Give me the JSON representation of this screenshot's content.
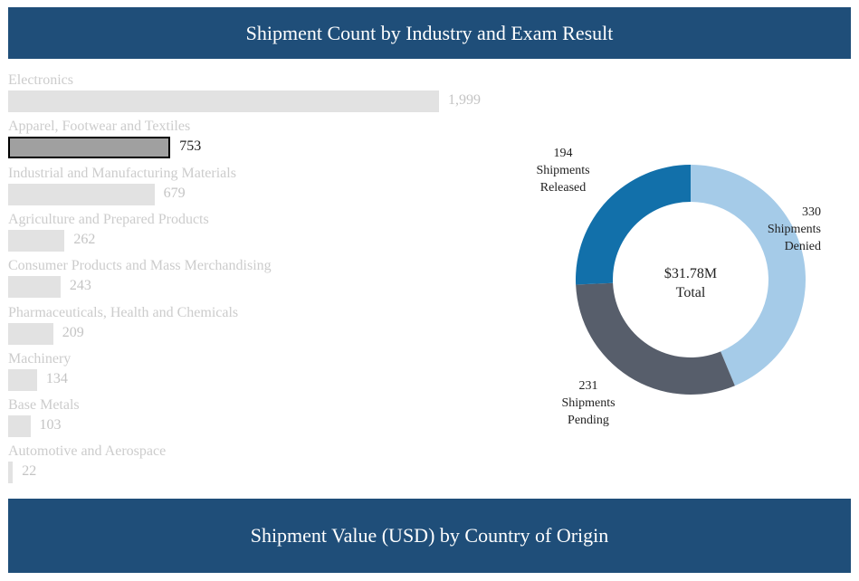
{
  "top_title": "Shipment Count by Industry and Exam Result",
  "bottom_title": "Shipment Value (USD) by Country of Origin",
  "colors": {
    "banner": "#1f4e79",
    "bar": "#e2e2e2",
    "bar_selected": "#a0a0a0",
    "released": "#1270aa",
    "denied": "#a5cbe8",
    "pending": "#575e6b"
  },
  "chart_data": [
    {
      "type": "bar",
      "orientation": "horizontal",
      "title": "Shipment Count by Industry and Exam Result",
      "categories": [
        "Electronics",
        "Apparel, Footwear and Textiles",
        "Industrial and Manufacturing Materials",
        "Agriculture and Prepared Products",
        "Consumer Products and Mass Merchandising",
        "Pharmaceuticals, Health and Chemicals",
        "Machinery",
        "Base Metals",
        "Automotive and Aerospace"
      ],
      "values": [
        1999,
        753,
        679,
        262,
        243,
        209,
        134,
        103,
        22
      ],
      "value_labels": [
        "1,999",
        "753",
        "679",
        "262",
        "243",
        "209",
        "134",
        "103",
        "22"
      ],
      "selected": "Apparel, Footwear and Textiles",
      "xlim": [
        0,
        1999
      ]
    },
    {
      "type": "pie",
      "donut": true,
      "center_label": [
        "$31.78M",
        "Total"
      ],
      "slices": [
        {
          "value": 330,
          "label": [
            "330",
            "Shipments",
            "Denied"
          ],
          "color": "#a5cbe8"
        },
        {
          "value": 231,
          "label": [
            "231",
            "Shipments",
            "Pending"
          ],
          "color": "#575e6b"
        },
        {
          "value": 194,
          "label": [
            "194",
            "Shipments",
            "Released"
          ],
          "color": "#1270aa"
        }
      ]
    }
  ]
}
